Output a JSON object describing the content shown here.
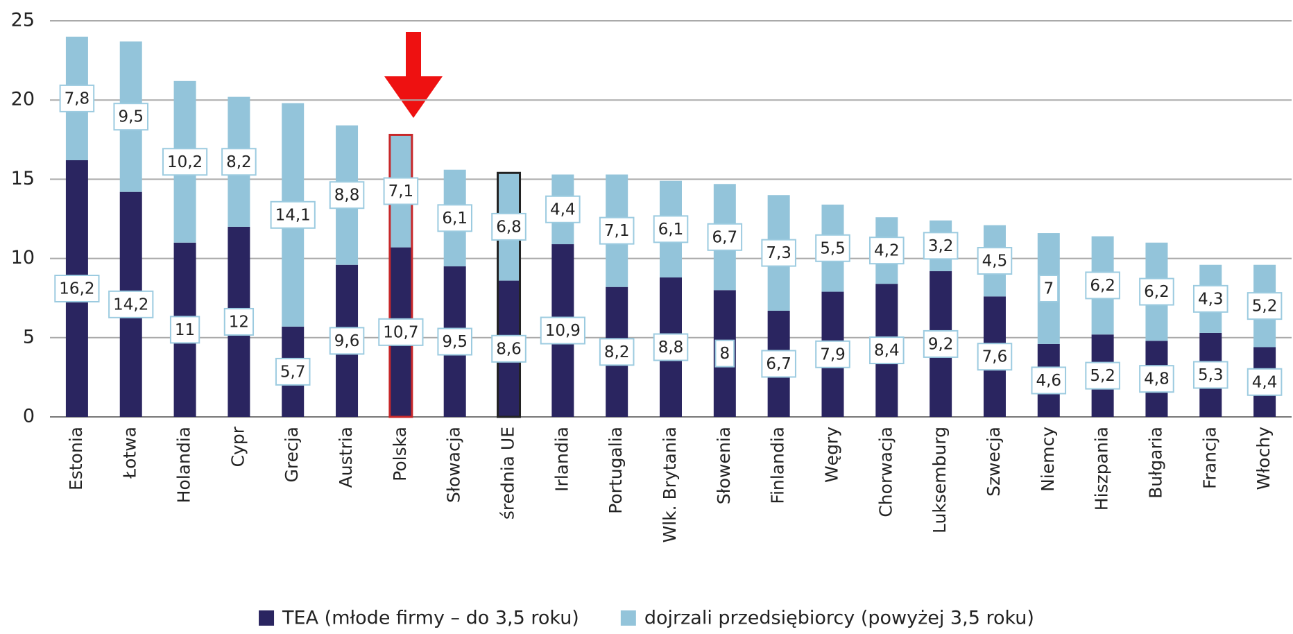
{
  "chart_data": {
    "type": "stacked_bar",
    "categories": [
      "Estonia",
      "Łotwa",
      "Holandia",
      "Cypr",
      "Grecja",
      "Austria",
      "Polska",
      "Słowacja",
      "średnia UE",
      "Irlandia",
      "Portugalia",
      "Wlk. Brytania",
      "Słowenia",
      "Finlandia",
      "Węgry",
      "Chorwacja",
      "Luksemburg",
      "Szwecja",
      "Niemcy",
      "Hiszpania",
      "Bułgaria",
      "Francja",
      "Włochy"
    ],
    "series": [
      {
        "name": "TEA (młode firmy – do 3,5 roku)",
        "color": "#2a2560",
        "values": [
          16.2,
          14.2,
          11,
          12,
          5.7,
          9.6,
          10.7,
          9.5,
          8.6,
          10.9,
          8.2,
          8.8,
          8,
          6.7,
          7.9,
          8.4,
          9.2,
          7.6,
          4.6,
          5.2,
          4.8,
          5.3,
          4.4
        ],
        "value_labels": [
          "16,2",
          "14,2",
          "11",
          "12",
          "5,7",
          "9,6",
          "10,7",
          "9,5",
          "8,6",
          "10,9",
          "8,2",
          "8,8",
          "8",
          "6,7",
          "7,9",
          "8,4",
          "9,2",
          "7,6",
          "4,6",
          "5,2",
          "4,8",
          "5,3",
          "4,4"
        ]
      },
      {
        "name": "dojrzali przedsiębiorcy (powyżej 3,5 roku)",
        "color": "#93c4da",
        "values": [
          7.8,
          9.5,
          10.2,
          8.2,
          14.1,
          8.8,
          7.1,
          6.1,
          6.8,
          4.4,
          7.1,
          6.1,
          6.7,
          7.3,
          5.5,
          4.2,
          3.2,
          4.5,
          7,
          6.2,
          6.2,
          4.3,
          5.2
        ],
        "value_labels": [
          "7,8",
          "9,5",
          "10,2",
          "8,2",
          "14,1",
          "8,8",
          "7,1",
          "6,1",
          "6,8",
          "4,4",
          "7,1",
          "6,1",
          "6,7",
          "7,3",
          "5,5",
          "4,2",
          "3,2",
          "4,5",
          "7",
          "6,2",
          "6,2",
          "4,3",
          "5,2"
        ]
      }
    ],
    "ylim": [
      0,
      25
    ],
    "yticks": [
      0,
      5,
      10,
      15,
      20,
      25
    ],
    "grid": true,
    "legend": "bottom",
    "highlight": [
      {
        "category": "Polska",
        "color": "#c8282a"
      },
      {
        "category": "średnia UE",
        "color": "#222222"
      }
    ]
  }
}
